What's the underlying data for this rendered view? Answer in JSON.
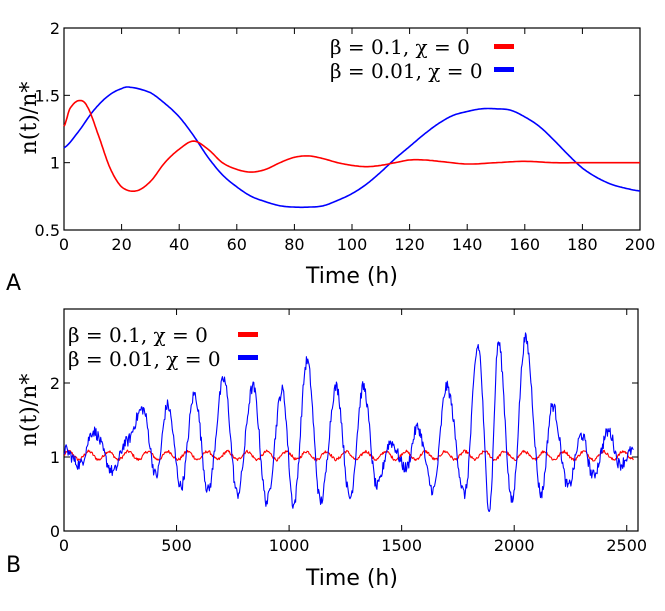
{
  "chart_data": [
    {
      "panel": "A",
      "type": "line",
      "xlabel": "Time (h)",
      "ylabel": "n(t)/n*",
      "xlim": [
        0,
        200
      ],
      "ylim": [
        0.5,
        2
      ],
      "xticks": [
        0,
        20,
        40,
        60,
        80,
        100,
        120,
        140,
        160,
        180,
        200
      ],
      "xtick_labels": [
        "0",
        "20",
        "40",
        "60",
        "80",
        "100",
        "120",
        "140",
        "160",
        "180",
        "200"
      ],
      "yticks": [
        0.5,
        1,
        1.5,
        2
      ],
      "ytick_labels": [
        "0.5",
        "1",
        "1.5",
        "2"
      ],
      "legend_position": "top-right",
      "series": [
        {
          "name": "β = 0.1,   χ = 0",
          "color": "#ff0000",
          "x": [
            0,
            2,
            5,
            8,
            12,
            16,
            20,
            25,
            30,
            35,
            40,
            45,
            50,
            55,
            60,
            65,
            70,
            75,
            80,
            85,
            90,
            95,
            100,
            105,
            110,
            115,
            120,
            125,
            130,
            140,
            150,
            160,
            170,
            180,
            190,
            200
          ],
          "values": [
            1.27,
            1.4,
            1.46,
            1.42,
            1.2,
            0.96,
            0.82,
            0.79,
            0.86,
            1.0,
            1.1,
            1.16,
            1.1,
            1.0,
            0.95,
            0.93,
            0.95,
            1.0,
            1.04,
            1.05,
            1.03,
            1.0,
            0.98,
            0.97,
            0.98,
            1.0,
            1.02,
            1.02,
            1.01,
            0.99,
            1.0,
            1.01,
            1.0,
            1.0,
            1.0,
            1.0
          ]
        },
        {
          "name": "β = 0.01, χ = 0",
          "color": "#0000ff",
          "x": [
            0,
            5,
            10,
            15,
            20,
            23,
            30,
            35,
            40,
            45,
            50,
            55,
            60,
            65,
            70,
            75,
            80,
            85,
            90,
            95,
            100,
            105,
            110,
            115,
            120,
            125,
            130,
            135,
            140,
            145,
            150,
            155,
            160,
            165,
            170,
            175,
            180,
            185,
            190,
            195,
            200
          ],
          "values": [
            1.11,
            1.23,
            1.38,
            1.49,
            1.55,
            1.56,
            1.52,
            1.44,
            1.34,
            1.2,
            1.04,
            0.91,
            0.82,
            0.75,
            0.71,
            0.68,
            0.67,
            0.67,
            0.68,
            0.72,
            0.77,
            0.84,
            0.93,
            1.03,
            1.12,
            1.21,
            1.29,
            1.35,
            1.38,
            1.4,
            1.4,
            1.39,
            1.34,
            1.27,
            1.17,
            1.06,
            0.96,
            0.89,
            0.84,
            0.81,
            0.79
          ]
        }
      ]
    },
    {
      "panel": "B",
      "type": "line",
      "xlabel": "Time (h)",
      "ylabel": "n(t)/n*",
      "xlim": [
        0,
        2550
      ],
      "ylim": [
        0,
        3
      ],
      "xticks": [
        0,
        500,
        1000,
        1500,
        2000,
        2500
      ],
      "xtick_labels": [
        "0",
        "500",
        "1000",
        "1500",
        "2000",
        "2500"
      ],
      "yticks": [
        0,
        1,
        2
      ],
      "ytick_labels": [
        "0",
        "1",
        "2"
      ],
      "legend_position": "top-left",
      "series": [
        {
          "name": "β = 0.1,   χ = 0",
          "color": "#ff0000",
          "x": [
            0,
            2530
          ],
          "values": [
            1.02,
            1.02
          ],
          "note": "small fast oscillation around ~1.0 (amplitude ~0.06)"
        },
        {
          "name": "β = 0.01, χ = 0",
          "color": "#0000ff",
          "x": [
            0,
            70,
            130,
            220,
            275,
            350,
            410,
            460,
            520,
            580,
            640,
            710,
            770,
            840,
            900,
            970,
            1020,
            1080,
            1140,
            1210,
            1270,
            1330,
            1390,
            1450,
            1520,
            1570,
            1640,
            1700,
            1780,
            1840,
            1890,
            1930,
            1990,
            2050,
            2120,
            2170,
            2240,
            2300,
            2350,
            2420,
            2470,
            2530
          ],
          "values": [
            1.1,
            0.9,
            1.35,
            0.8,
            1.2,
            1.65,
            0.75,
            1.7,
            0.6,
            1.85,
            0.55,
            2.05,
            0.5,
            1.95,
            0.4,
            1.9,
            0.35,
            2.3,
            0.4,
            1.95,
            0.45,
            1.95,
            0.6,
            1.2,
            0.85,
            1.4,
            0.55,
            1.95,
            0.5,
            2.5,
            0.3,
            2.55,
            0.4,
            2.6,
            0.5,
            1.7,
            0.6,
            1.3,
            0.75,
            1.35,
            0.9,
            1.1
          ]
        }
      ]
    }
  ],
  "panel_labels": [
    "A",
    "B"
  ]
}
